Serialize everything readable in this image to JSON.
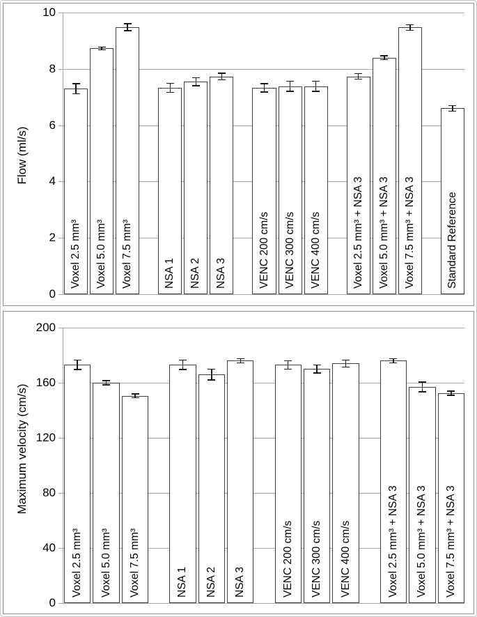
{
  "figure": {
    "description": "Two stacked single-series bar charts with error bars comparing MRI scan parameter settings",
    "panel_count": 2
  },
  "colors": {
    "bar_fill": "#ffffff",
    "bar_border": "#3f3f3f",
    "error_bar": "#1a1a1a",
    "gridline": "#a6a6a6",
    "axis_line": "#a6a6a6",
    "panel_border": "#8f8f8f",
    "figure_border": "#c6c6c6",
    "text": "#000000"
  },
  "chart_data": [
    {
      "type": "bar",
      "title": "",
      "xlabel": "",
      "ylabel": "Flow (ml/s)",
      "ylim": [
        0,
        10
      ],
      "yticks": [
        0,
        2,
        4,
        6,
        8,
        10
      ],
      "grid": true,
      "legend": false,
      "bar_fill": "#ffffff",
      "label_position": "inside-bottom-rotated-90",
      "group_sizes": [
        3,
        3,
        3,
        3,
        1
      ],
      "categories": [
        "Voxel 2.5 mm³",
        "Voxel 5.0 mm³",
        "Voxel 7.5 mm³",
        "NSA 1",
        "NSA 2",
        "NSA 3",
        "VENC 200 cm/s",
        "VENC 300 cm/s",
        "VENC 400 cm/s",
        "Voxel 2.5 mm³ + NSA 3",
        "Voxel 5.0 mm³ + NSA 3",
        "Voxel 7.5 mm³ + NSA 3",
        "Standard Reference"
      ],
      "values": [
        7.3,
        8.73,
        9.48,
        7.33,
        7.54,
        7.73,
        7.33,
        7.38,
        7.38,
        7.73,
        8.4,
        9.47,
        6.6
      ],
      "errors": [
        0.18,
        0.05,
        0.12,
        0.16,
        0.14,
        0.12,
        0.15,
        0.18,
        0.18,
        0.1,
        0.07,
        0.1,
        0.1
      ]
    },
    {
      "type": "bar",
      "title": "",
      "xlabel": "",
      "ylabel": "Maximum velocity (cm/s)",
      "ylim": [
        0,
        200
      ],
      "yticks": [
        0,
        40,
        80,
        120,
        160,
        200
      ],
      "grid": true,
      "legend": false,
      "bar_fill": "#ffffff",
      "label_position": "inside-bottom-rotated-90",
      "group_sizes": [
        3,
        3,
        3,
        3
      ],
      "categories": [
        "Voxel 2.5 mm³",
        "Voxel 5.0 mm³",
        "Voxel 7.5 mm³",
        "NSA 1",
        "NSA 2",
        "NSA 3",
        "VENC 200 cm/s",
        "VENC 300 cm/s",
        "VENC 400 cm/s",
        "Voxel 2.5 mm³ + NSA 3",
        "Voxel 5.0 mm³ + NSA 3",
        "Voxel 7.5 mm³ + NSA 3"
      ],
      "values": [
        173,
        160,
        150.5,
        173,
        166,
        176,
        173,
        170,
        174,
        176,
        157,
        152.5
      ],
      "errors": [
        3.5,
        1.5,
        1.5,
        3.5,
        4,
        1.5,
        3,
        3,
        2.5,
        1.5,
        3.5,
        1.5
      ]
    }
  ]
}
